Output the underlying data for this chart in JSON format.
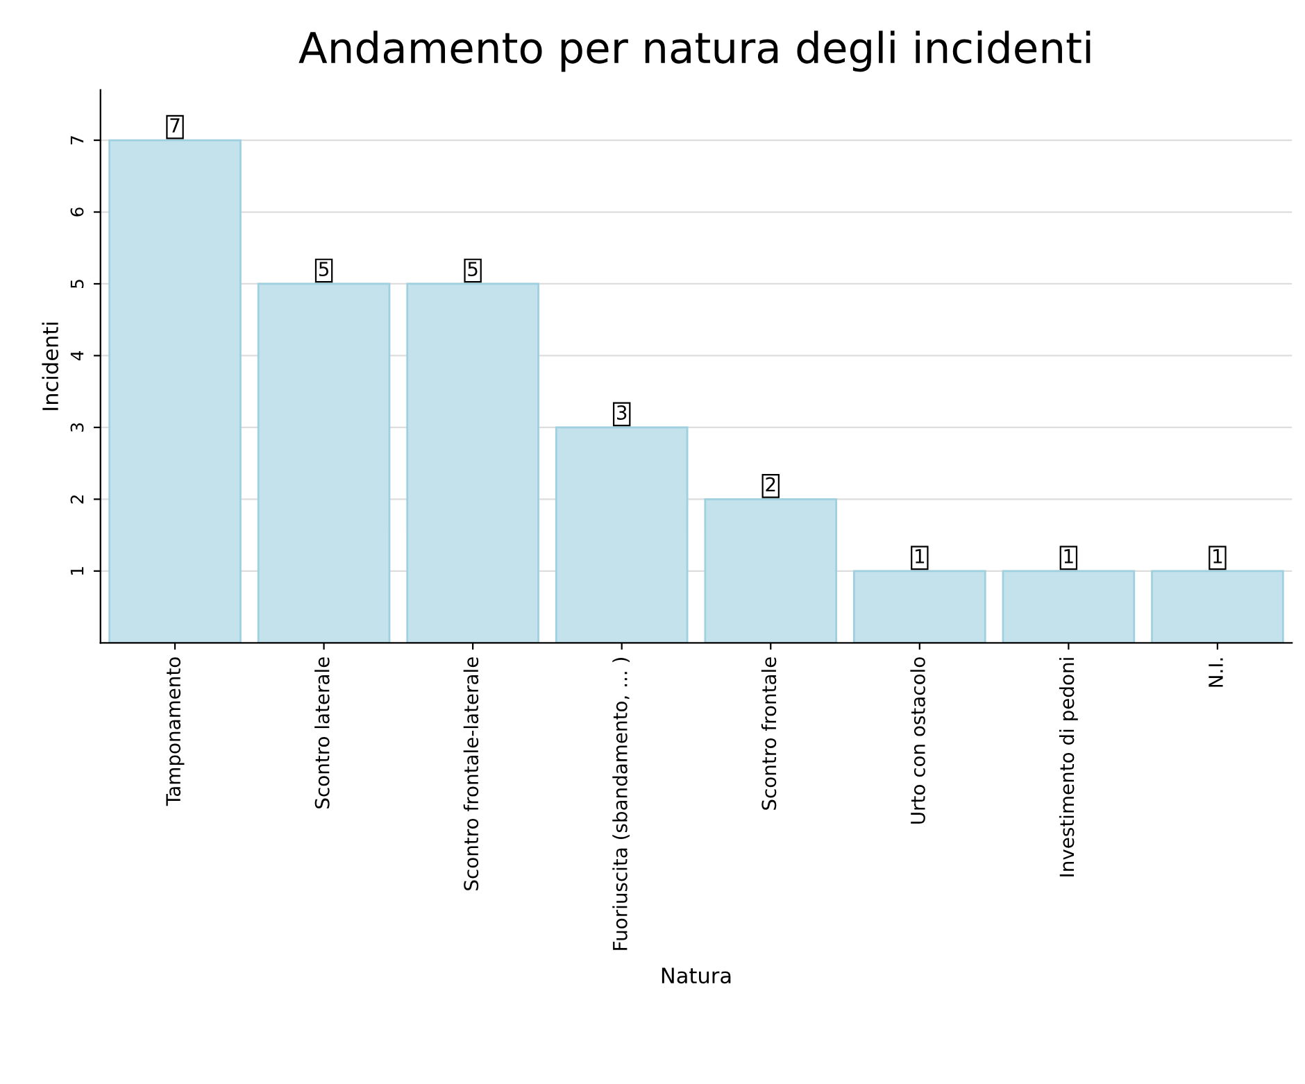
{
  "chart_data": {
    "type": "bar",
    "title": "Andamento per natura degli incidenti",
    "xlabel": "Natura",
    "ylabel": "Incidenti",
    "categories": [
      "Tamponamento",
      "Scontro laterale",
      "Scontro frontale-laterale",
      "Fuoriuscita (sbandamento, ... )",
      "Scontro frontale",
      "Urto con ostacolo",
      "Investimento di pedoni",
      "N.I."
    ],
    "values": [
      7,
      5,
      5,
      3,
      2,
      1,
      1,
      1
    ],
    "color": "#c4e2ec",
    "ylim": [
      0,
      7.7
    ],
    "yticks": [
      1,
      2,
      3,
      4,
      5,
      6,
      7
    ],
    "grid": "y",
    "data_labels": true
  }
}
